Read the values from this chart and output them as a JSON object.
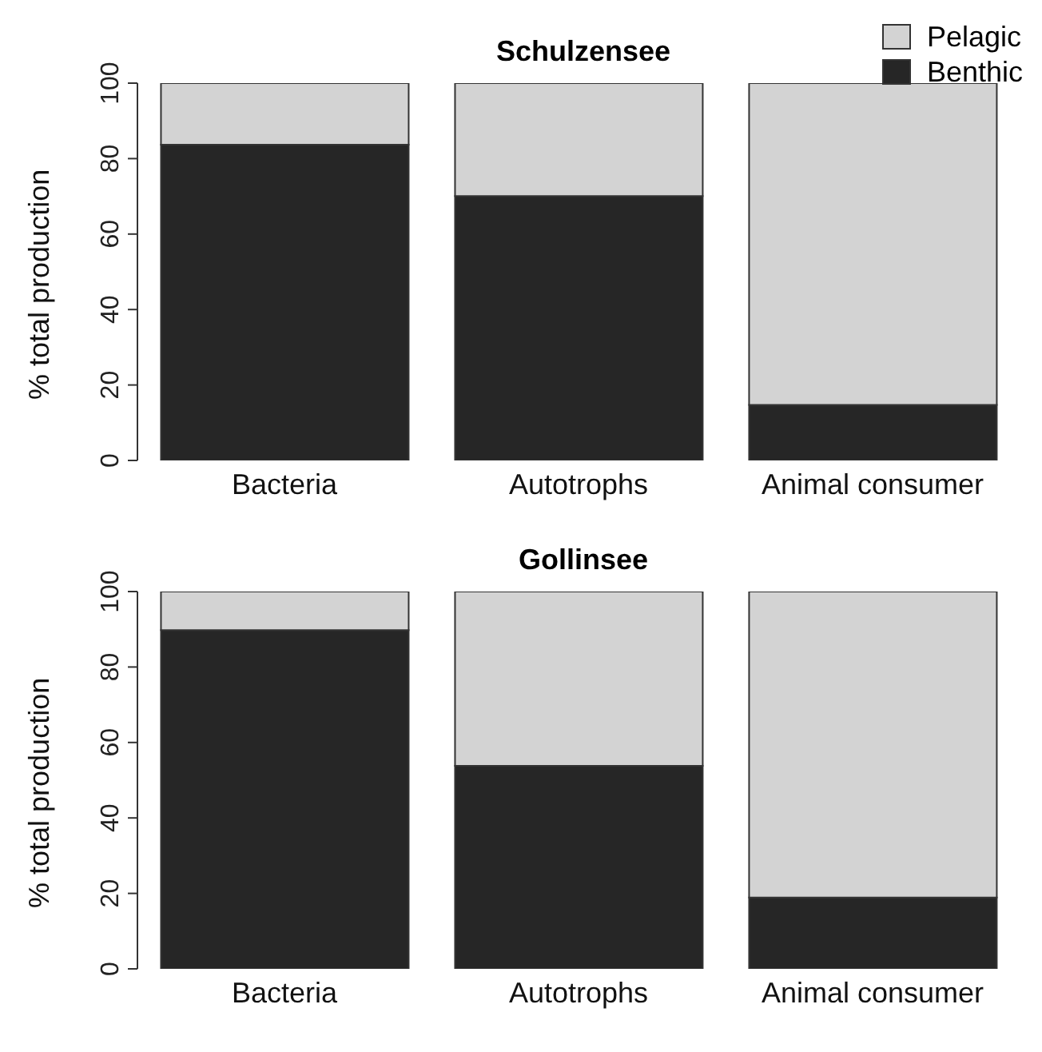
{
  "chart_data": [
    {
      "type": "bar",
      "title": "Schulzensee",
      "ylabel": "% total production",
      "categories": [
        "Bacteria",
        "Autotrophs",
        "Animal consumer"
      ],
      "stacked": true,
      "series": [
        {
          "name": "Benthic",
          "color": "#262626",
          "values": [
            83.7,
            70.1,
            14.7
          ]
        },
        {
          "name": "Pelagic",
          "color": "#d3d3d3",
          "values": [
            16.3,
            29.9,
            85.3
          ]
        }
      ],
      "ylim": [
        0,
        100
      ],
      "yticks": [
        0,
        20,
        40,
        60,
        80,
        100
      ],
      "grid": false,
      "legend": "top right"
    },
    {
      "type": "bar",
      "title": "Gollinsee",
      "ylabel": "% total production",
      "categories": [
        "Bacteria",
        "Autotrophs",
        "Animal consumer"
      ],
      "stacked": true,
      "series": [
        {
          "color": "#262626",
          "values": [
            89.8,
            53.8,
            18.9
          ]
        },
        {
          "color": "#d3d3d3",
          "values": [
            10.2,
            46.2,
            81.1
          ]
        }
      ],
      "ylim": [
        0,
        100
      ],
      "yticks": [
        0,
        20,
        40,
        60,
        80,
        100
      ],
      "grid": false
    }
  ]
}
